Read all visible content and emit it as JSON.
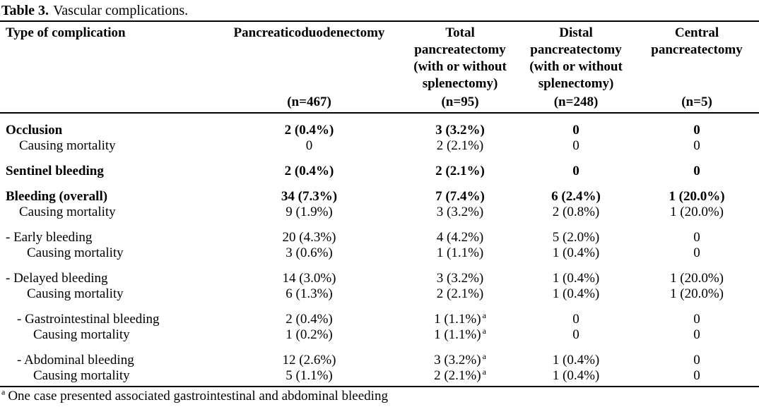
{
  "title": {
    "label": "Table 3.",
    "text": "Vascular complications."
  },
  "colors": {
    "text": "#000000",
    "background": "#ffffff",
    "rule": "#000000"
  },
  "header": {
    "row_label_col": "Type of complication",
    "columns": [
      {
        "name": "Pancreaticoduodenectomy",
        "n": "(n=467)"
      },
      {
        "name": "Total\npancreatectomy\n(with or without\nsplenectomy)",
        "n": "(n=95)"
      },
      {
        "name": "Distal\npancreatectomy\n(with or without\nsplenectomy)",
        "n": "(n=248)"
      },
      {
        "name": "Central\npancreatectomy",
        "n": "(n=5)"
      }
    ]
  },
  "chart_data": {
    "type": "table",
    "title": "Table 3. Vascular complications.",
    "columns": [
      "Type of complication",
      "Pancreaticoduodenectomy (n=467)",
      "Total pancreatectomy (with or without splenectomy) (n=95)",
      "Distal pancreatectomy (with or without splenectomy) (n=248)",
      "Central pancreatectomy (n=5)"
    ],
    "rows": [
      [
        "Occlusion",
        "2 (0.4%)",
        "3 (3.2%)",
        "0",
        "0"
      ],
      [
        "Causing mortality",
        "0",
        "2 (2.1%)",
        "0",
        "0"
      ],
      [
        "Sentinel bleeding",
        "2 (0.4%)",
        "2 (2.1%)",
        "0",
        "0"
      ],
      [
        "Bleeding (overall)",
        "34 (7.3%)",
        "7 (7.4%)",
        "6 (2.4%)",
        "1 (20.0%)"
      ],
      [
        "Causing mortality",
        "9 (1.9%)",
        "3 (3.2%)",
        "2 (0.8%)",
        "1 (20.0%)"
      ],
      [
        "- Early bleeding",
        "20 (4.3%)",
        "4 (4.2%)",
        "5 (2.0%)",
        "0"
      ],
      [
        "Causing mortality",
        "3 (0.6%)",
        "1 (1.1%)",
        "1 (0.4%)",
        "0"
      ],
      [
        "- Delayed bleeding",
        "14 (3.0%)",
        "3 (3.2%)",
        "1 (0.4%)",
        "1 (20.0%)"
      ],
      [
        "Causing mortality",
        "6 (1.3%)",
        "2 (2.1%)",
        "1 (0.4%)",
        "1 (20.0%)"
      ],
      [
        "- Gastrointestinal bleeding",
        "2 (0.4%)",
        "1 (1.1%) a",
        "0",
        "0"
      ],
      [
        "Causing mortality",
        "1 (0.2%)",
        "1 (1.1%) a",
        "0",
        "0"
      ],
      [
        "- Abdominal bleeding",
        "12 (2.6%)",
        "3 (3.2%) a",
        "1 (0.4%)",
        "0"
      ],
      [
        "Causing mortality",
        "5 (1.1%)",
        "2 (2.1%) a",
        "1 (0.4%)",
        "0"
      ]
    ]
  },
  "table": {
    "rows": [
      {
        "label": "Occlusion",
        "values": [
          "2 (0.4%)",
          "3 (3.2%)",
          "0",
          "0"
        ]
      },
      {
        "label": "Causing mortality",
        "values": [
          "0",
          "2 (2.1%)",
          "0",
          "0"
        ]
      },
      {
        "label": "Sentinel bleeding",
        "values": [
          "2 (0.4%)",
          "2 (2.1%)",
          "0",
          "0"
        ]
      },
      {
        "label": "Bleeding (overall)",
        "values": [
          "34 (7.3%)",
          "7 (7.4%)",
          "6 (2.4%)",
          "1 (20.0%)"
        ]
      },
      {
        "label": "Causing mortality",
        "values": [
          "9 (1.9%)",
          "3 (3.2%)",
          "2 (0.8%)",
          "1 (20.0%)"
        ]
      },
      {
        "label": "- Early bleeding",
        "values": [
          "20 (4.3%)",
          "4 (4.2%)",
          "5 (2.0%)",
          "0"
        ]
      },
      {
        "label": "Causing mortality",
        "values": [
          "3 (0.6%)",
          "1 (1.1%)",
          "1 (0.4%)",
          "0"
        ]
      },
      {
        "label": "- Delayed bleeding",
        "values": [
          "14 (3.0%)",
          "3 (3.2%)",
          "1 (0.4%)",
          "1 (20.0%)"
        ]
      },
      {
        "label": "Causing mortality",
        "values": [
          "6 (1.3%)",
          "2 (2.1%)",
          "1 (0.4%)",
          "1 (20.0%)"
        ]
      },
      {
        "label": "- Gastrointestinal bleeding",
        "values": [
          "2 (0.4%)",
          "1 (1.1%)",
          "0",
          "0"
        ],
        "sups": [
          "",
          "a",
          "",
          ""
        ]
      },
      {
        "label": "Causing mortality",
        "values": [
          "1 (0.2%)",
          "1 (1.1%)",
          "0",
          "0"
        ],
        "sups": [
          "",
          "a",
          "",
          ""
        ]
      },
      {
        "label": "- Abdominal bleeding",
        "values": [
          "12 (2.6%)",
          "3 (3.2%)",
          "1 (0.4%)",
          "0"
        ],
        "sups": [
          "",
          "a",
          "",
          ""
        ]
      },
      {
        "label": "Causing mortality",
        "values": [
          "5 (1.1%)",
          "2 (2.1%)",
          "1 (0.4%)",
          "0"
        ],
        "sups": [
          "",
          "a",
          "",
          ""
        ]
      }
    ]
  },
  "footnote": {
    "marker": "a",
    "text": "One case presented associated gastrointestinal and abdominal bleeding"
  }
}
